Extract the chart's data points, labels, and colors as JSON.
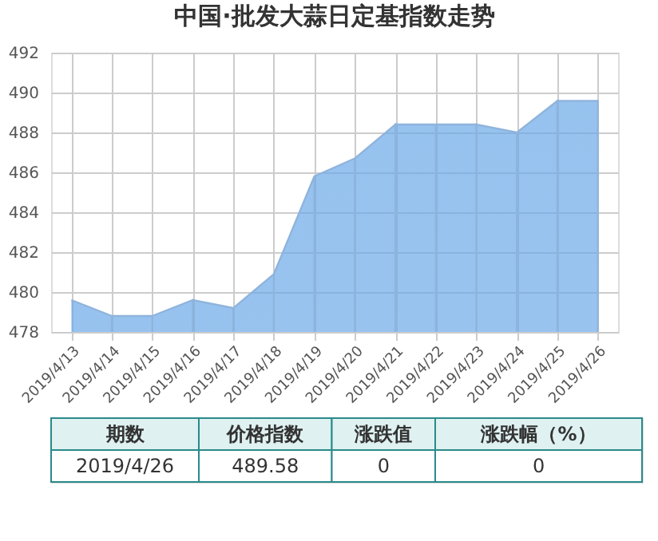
{
  "chart_data": {
    "type": "area",
    "title": "中国·批发大蒜日定基指数走势",
    "categories": [
      "2019/4/13",
      "2019/4/14",
      "2019/4/15",
      "2019/4/16",
      "2019/4/17",
      "2019/4/18",
      "2019/4/19",
      "2019/4/20",
      "2019/4/21",
      "2019/4/22",
      "2019/4/23",
      "2019/4/24",
      "2019/4/25",
      "2019/4/26"
    ],
    "series": [
      {
        "color": "#6aa8e8",
        "values": [
          479.6,
          478.8,
          478.8,
          479.6,
          479.2,
          480.9,
          485.8,
          486.7,
          488.4,
          488.4,
          488.4,
          488.0,
          489.58,
          489.58
        ]
      }
    ],
    "ylim": [
      478,
      492
    ],
    "yticks": [
      478,
      480,
      482,
      484,
      486,
      488,
      490,
      492
    ],
    "grid": true,
    "annotations": [
      "期数",
      "价格指数",
      "涨跌值",
      "涨跌幅（%）",
      "2019/4/26",
      "489.58",
      "0",
      "0"
    ]
  }
}
